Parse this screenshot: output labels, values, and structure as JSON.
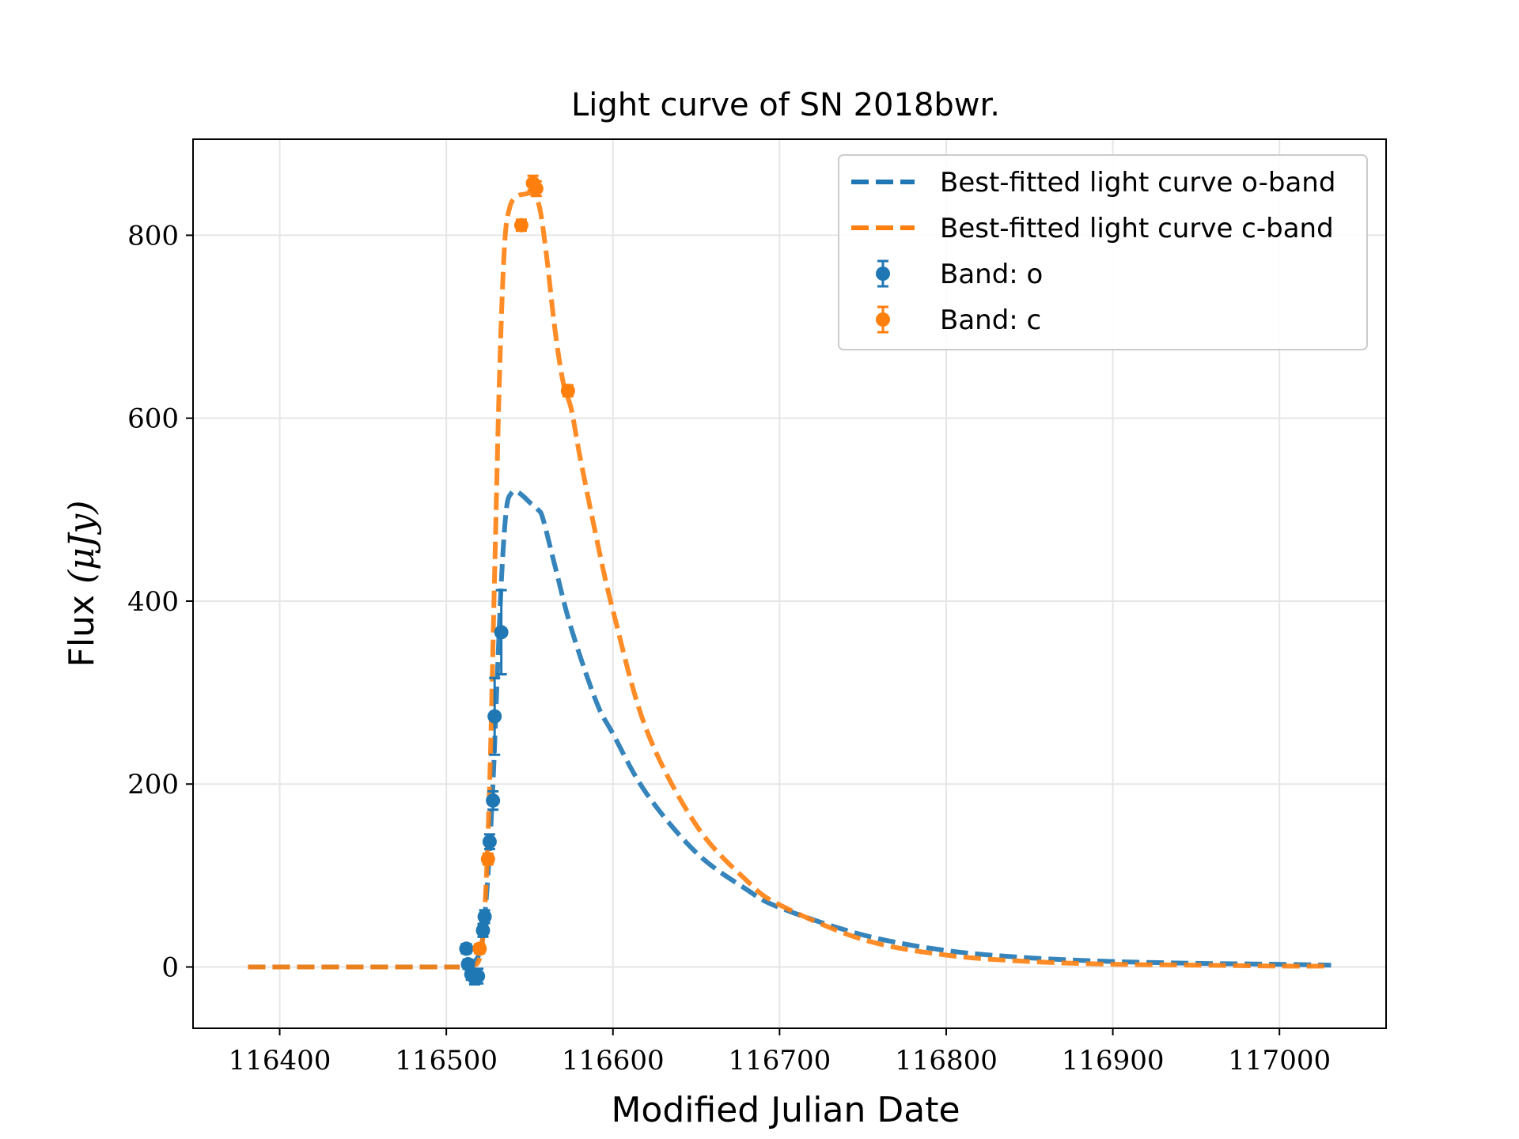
{
  "chart_data": {
    "type": "scatter",
    "title": "Light curve of SN 2018bwr.",
    "xlabel": "Modified Julian Date",
    "ylabel_text": "Flux ",
    "ylabel_unit": "(μJy)",
    "xlim": [
      116348,
      117064
    ],
    "ylim": [
      -67,
      905
    ],
    "xticks": [
      116400,
      116500,
      116600,
      116700,
      116800,
      116900,
      117000
    ],
    "yticks": [
      0,
      200,
      400,
      600,
      800
    ],
    "grid": true,
    "legend_position": "top-right",
    "colors": {
      "o": "#1f77b4",
      "c": "#ff7f0e"
    },
    "fit_curves": [
      {
        "name": "Best-fitted light curve o-band",
        "band": "o",
        "x": [
          116381,
          116400,
          116450,
          116500,
          116505,
          116510,
          116515,
          116520,
          116522,
          116525,
          116528,
          116530,
          116533,
          116536,
          116539,
          116542,
          116546,
          116550,
          116555,
          116558,
          116565,
          116575,
          116590,
          116600,
          116620,
          116650,
          116680,
          116700,
          116750,
          116800,
          116850,
          116900,
          116950,
          117000,
          117031
        ],
        "y": [
          0,
          0,
          0,
          0,
          0,
          0,
          2,
          15,
          35,
          100,
          200,
          290,
          420,
          500,
          518,
          520,
          515,
          508,
          500,
          490,
          440,
          370,
          290,
          255,
          190,
          125,
          85,
          65,
          35,
          18,
          10,
          6,
          4,
          3,
          2
        ]
      },
      {
        "name": "Best-fitted light curve c-band",
        "band": "c",
        "x": [
          116381,
          116400,
          116450,
          116500,
          116505,
          116510,
          116515,
          116520,
          116523,
          116526,
          116529,
          116532,
          116535,
          116538,
          116542,
          116547,
          116552,
          116556,
          116560,
          116565,
          116570,
          116575,
          116580,
          116590,
          116600,
          116620,
          116650,
          116680,
          116700,
          116750,
          116800,
          116850,
          116900,
          116950,
          117000,
          117031
        ],
        "y": [
          0,
          0,
          0,
          0,
          0,
          0,
          1,
          10,
          60,
          200,
          430,
          650,
          790,
          830,
          842,
          845,
          845,
          830,
          780,
          700,
          640,
          610,
          560,
          470,
          390,
          260,
          155,
          95,
          68,
          30,
          13,
          6,
          3,
          2,
          1,
          1
        ]
      }
    ],
    "series": [
      {
        "name": "Band: o",
        "band": "o",
        "points": [
          {
            "x": 116512,
            "y": 20,
            "err": 5
          },
          {
            "x": 116513,
            "y": 3,
            "err": 5
          },
          {
            "x": 116515,
            "y": -8,
            "err": 6
          },
          {
            "x": 116517,
            "y": -12,
            "err": 7
          },
          {
            "x": 116519,
            "y": -10,
            "err": 8
          },
          {
            "x": 116522,
            "y": 40,
            "err": 7
          },
          {
            "x": 116523,
            "y": 55,
            "err": 7
          },
          {
            "x": 116526,
            "y": 137,
            "err": 8
          },
          {
            "x": 116528,
            "y": 182,
            "err": 10
          },
          {
            "x": 116529,
            "y": 274,
            "err": 42
          },
          {
            "x": 116533,
            "y": 366,
            "err": 46
          }
        ]
      },
      {
        "name": "Band: c",
        "band": "c",
        "points": [
          {
            "x": 116520,
            "y": 20,
            "err": 5
          },
          {
            "x": 116525,
            "y": 118,
            "err": 6
          },
          {
            "x": 116545,
            "y": 811,
            "err": 6
          },
          {
            "x": 116552,
            "y": 857,
            "err": 8
          },
          {
            "x": 116554,
            "y": 851,
            "err": 8
          },
          {
            "x": 116573,
            "y": 630,
            "err": 6
          }
        ]
      }
    ]
  }
}
